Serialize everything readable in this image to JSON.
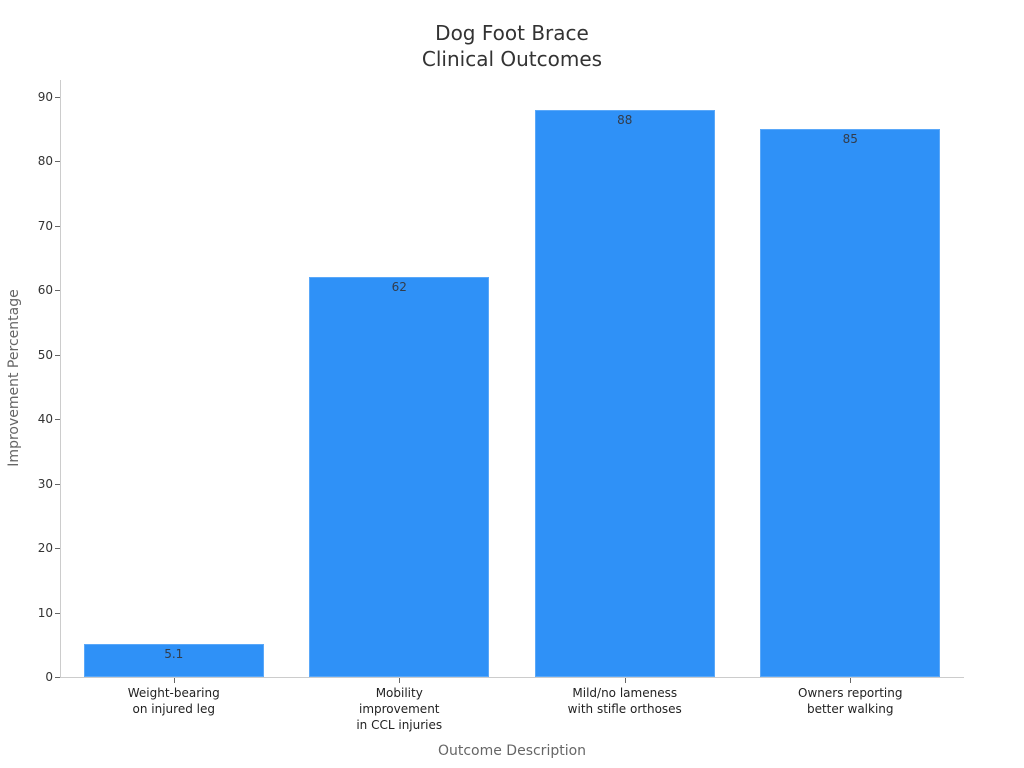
{
  "chart_data": {
    "type": "bar",
    "title": "Dog Foot Brace\nClinical Outcomes",
    "title_lines": [
      "Dog Foot Brace",
      "Clinical Outcomes"
    ],
    "categories": [
      "Weight-bearing on injured leg",
      "Mobility improvement in CCL injuries",
      "Mild/no lameness with stifle orthoses",
      "Owners reporting better walking"
    ],
    "category_lines": [
      [
        "Weight-bearing",
        "on injured leg"
      ],
      [
        "Mobility",
        "improvement",
        "in CCL injuries"
      ],
      [
        "Mild/no lameness",
        "with stifle orthoses"
      ],
      [
        "Owners reporting",
        "better walking"
      ]
    ],
    "values": [
      5.1,
      62,
      88,
      85
    ],
    "value_labels": [
      "5.1",
      "62",
      "88",
      "85"
    ],
    "xlabel": "Outcome Description",
    "ylabel": "Improvement Percentage",
    "ylim": [
      0,
      92
    ],
    "yticks": [
      0,
      10,
      20,
      30,
      40,
      50,
      60,
      70,
      80,
      90
    ],
    "ytick_labels": [
      "0",
      "10",
      "20",
      "30",
      "40",
      "50",
      "60",
      "70",
      "80",
      "90"
    ],
    "grid": false,
    "legend": null,
    "bar_color": "#2f91f7"
  }
}
